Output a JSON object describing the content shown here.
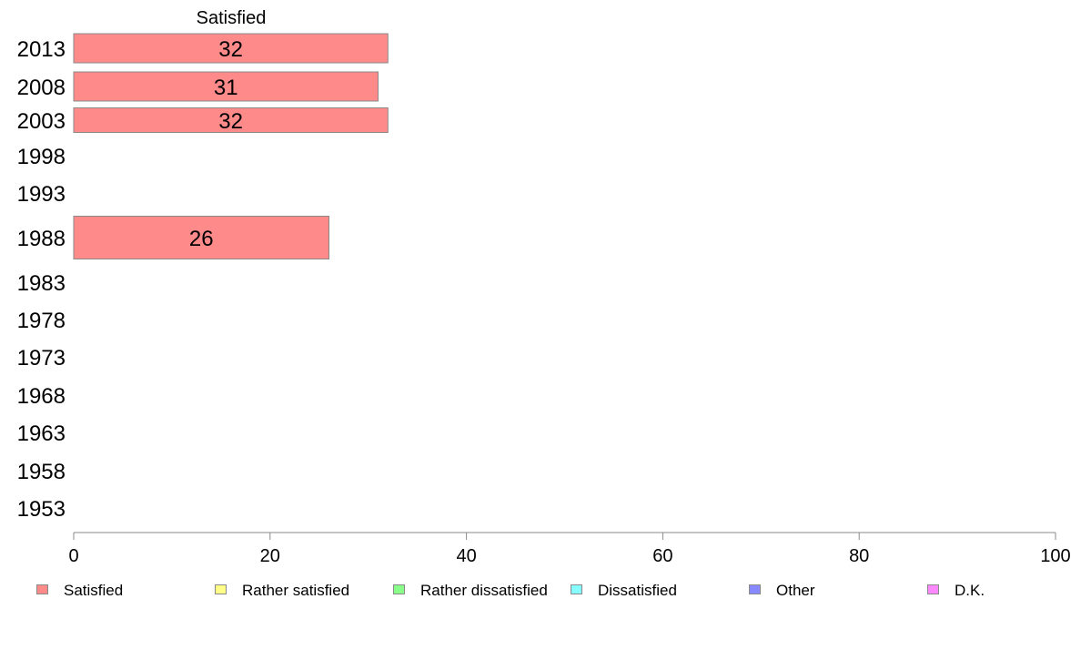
{
  "chart_data": {
    "type": "bar",
    "orientation": "horizontal",
    "categories": [
      "2013",
      "2008",
      "2003",
      "1998",
      "1993",
      "1988",
      "1983",
      "1978",
      "1973",
      "1968",
      "1963",
      "1958",
      "1953"
    ],
    "series": [
      {
        "name": "Satisfied",
        "color": "#ff8a8a",
        "values": [
          32,
          31,
          32,
          null,
          null,
          26,
          null,
          null,
          null,
          null,
          null,
          null,
          null
        ]
      },
      {
        "name": "Rather satisfied",
        "color": "#ffff88",
        "values": [
          null,
          null,
          null,
          null,
          null,
          null,
          null,
          null,
          null,
          null,
          null,
          null,
          null
        ]
      },
      {
        "name": "Rather dissatisfied",
        "color": "#88ff88",
        "values": [
          null,
          null,
          null,
          null,
          null,
          null,
          null,
          null,
          null,
          null,
          null,
          null,
          null
        ]
      },
      {
        "name": "Dissatisfied",
        "color": "#88ffff",
        "values": [
          null,
          null,
          null,
          null,
          null,
          null,
          null,
          null,
          null,
          null,
          null,
          null,
          null
        ]
      },
      {
        "name": "Other",
        "color": "#8888ff",
        "values": [
          null,
          null,
          null,
          null,
          null,
          null,
          null,
          null,
          null,
          null,
          null,
          null,
          null
        ]
      },
      {
        "name": "D.K.",
        "color": "#ff88ff",
        "values": [
          null,
          null,
          null,
          null,
          null,
          null,
          null,
          null,
          null,
          null,
          null,
          null,
          null
        ]
      }
    ],
    "column_title": "Satisfied",
    "xlim": [
      0,
      100
    ],
    "xticks": [
      "0",
      "20",
      "40",
      "60",
      "80",
      "100"
    ],
    "grid": false,
    "legend_position": "bottom"
  }
}
